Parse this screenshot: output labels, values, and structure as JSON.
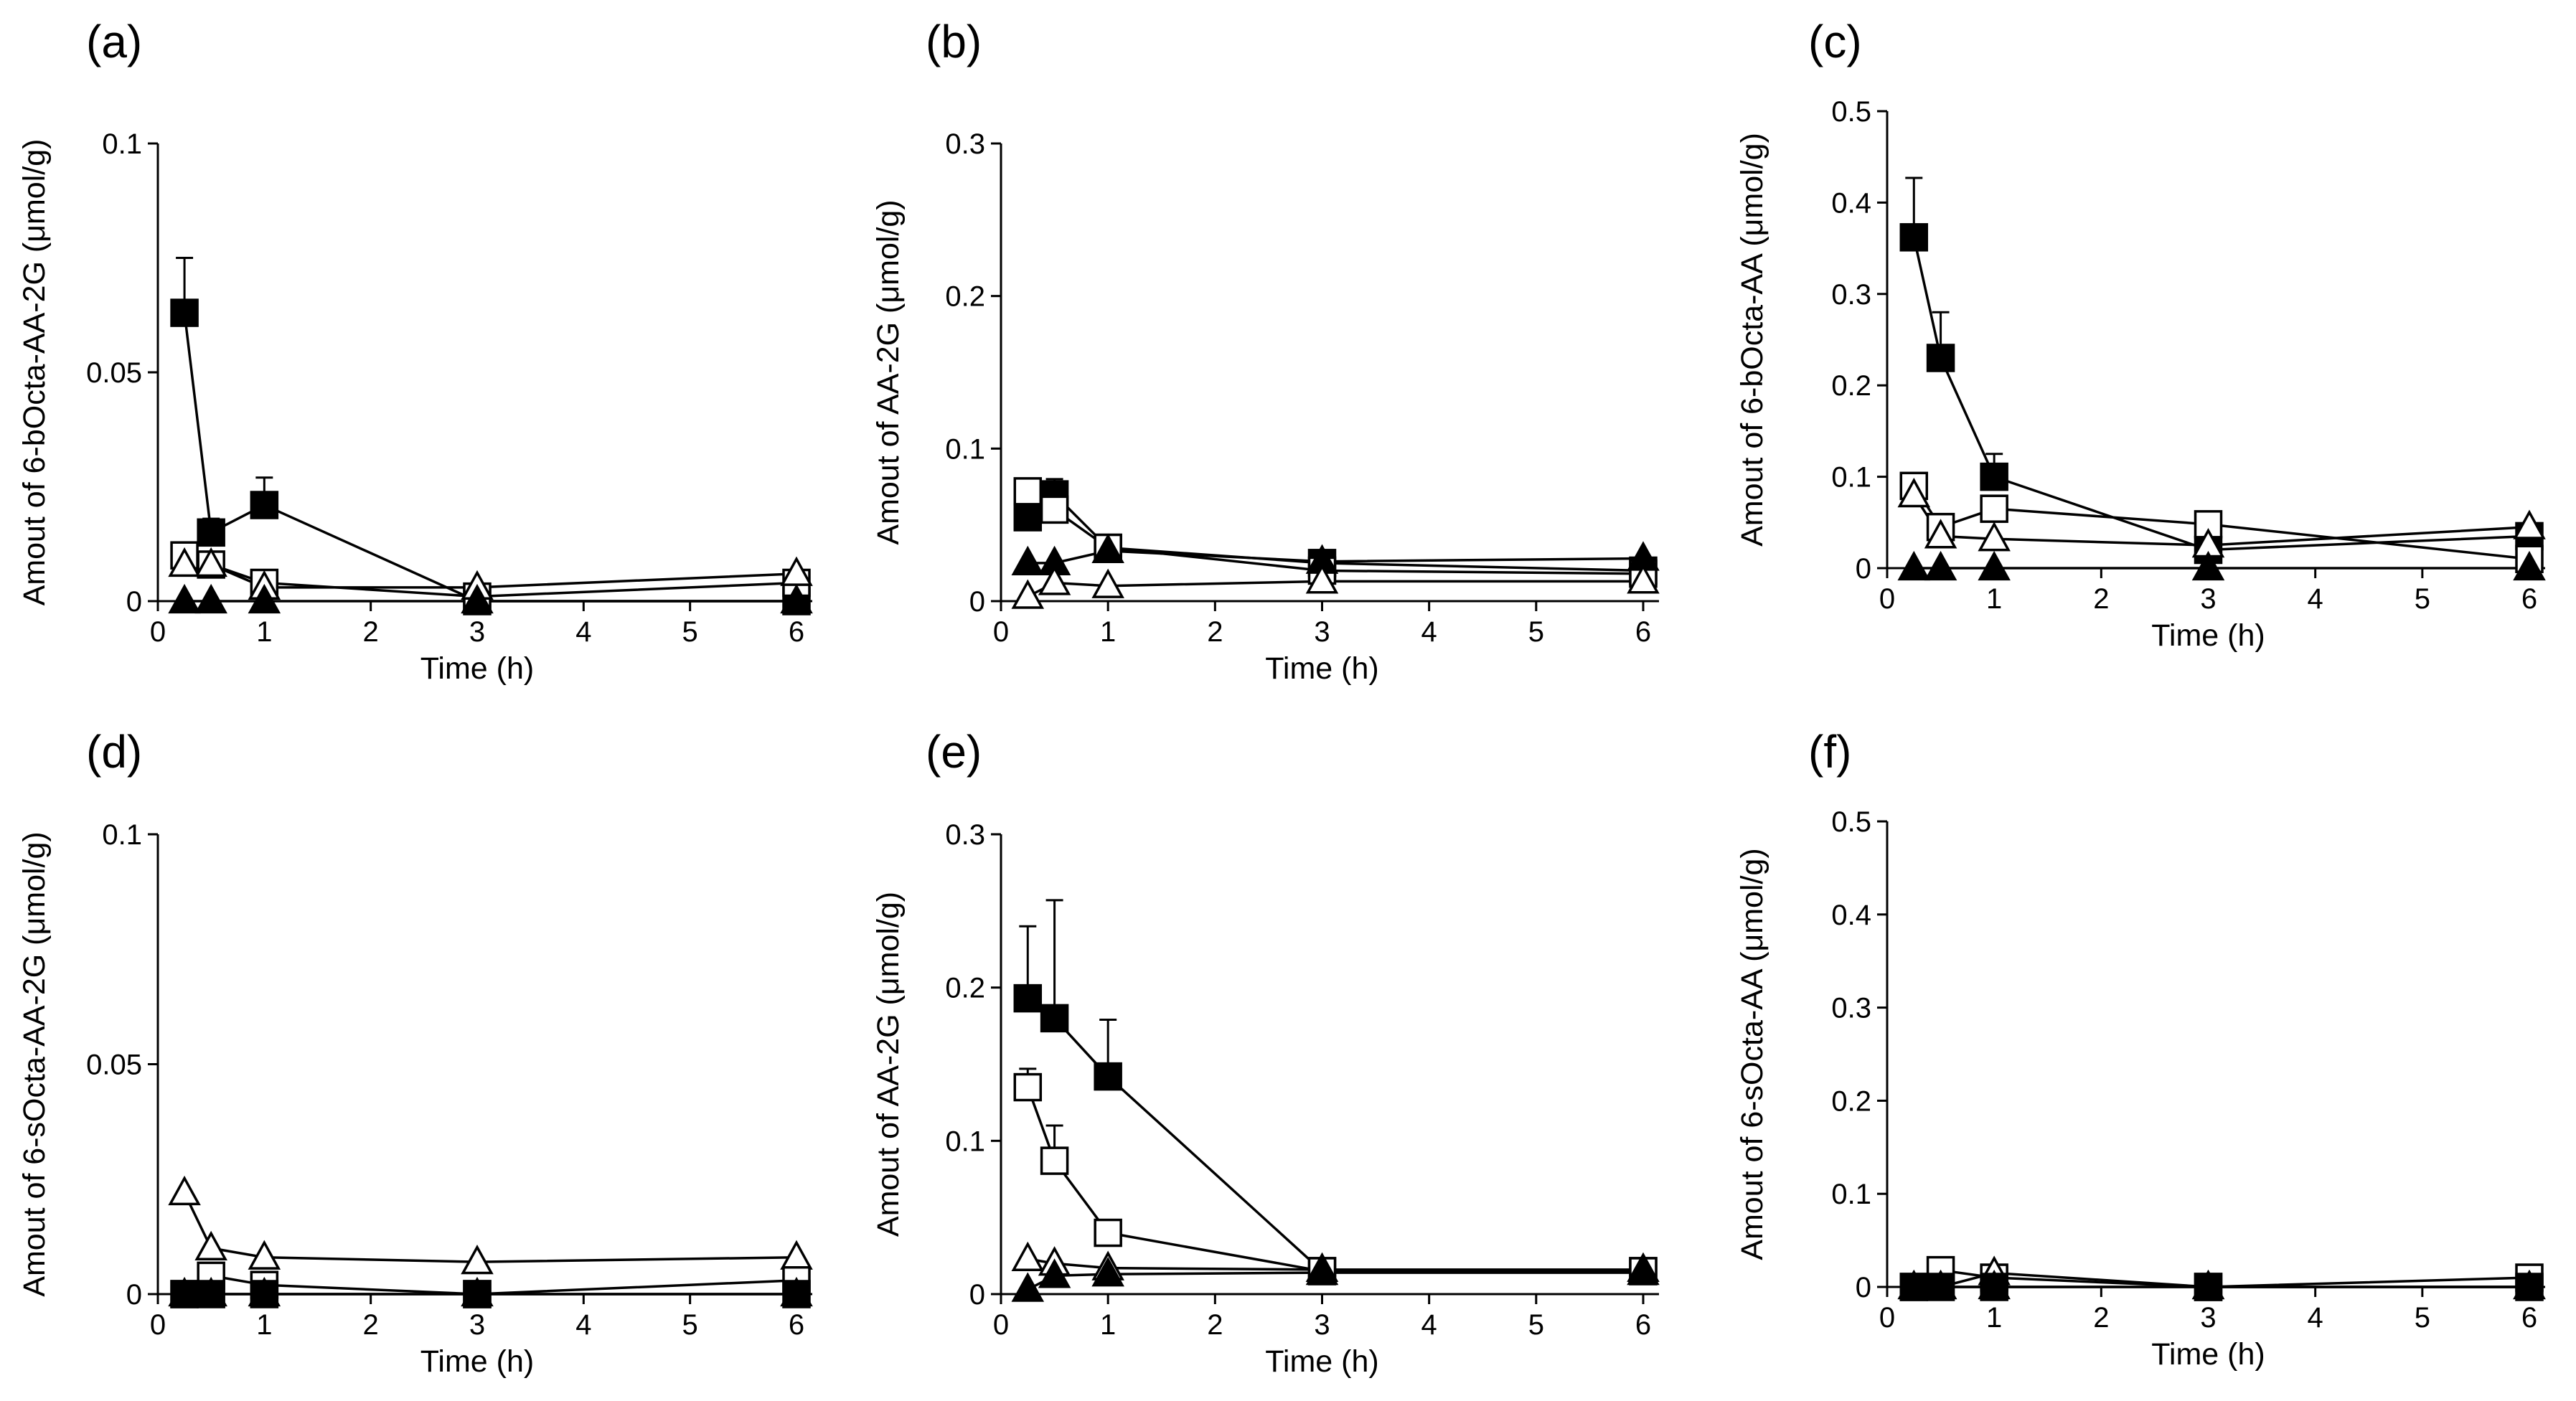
{
  "chart_data": [
    {
      "panel": "(a)",
      "type": "line",
      "ylabel": "Amout of 6-bOcta-AA-2G (μmol/g)",
      "xlabel": "Time (h)",
      "ylim": [
        0,
        0.1
      ],
      "xlim": [
        0,
        6
      ],
      "yticks": [
        {
          "v": 0,
          "t": "0"
        },
        {
          "v": 0.05,
          "t": "0.05"
        },
        {
          "v": 0.1,
          "t": "0.1"
        }
      ],
      "xticks": [
        0,
        1,
        2,
        3,
        4,
        5,
        6
      ],
      "series": [
        {
          "name": "filled-square",
          "x": [
            0.25,
            0.5,
            1,
            3,
            6
          ],
          "y": [
            0.063,
            0.015,
            0.021,
            0.0,
            0.0
          ],
          "err": [
            0.012,
            0.003,
            0.006,
            0,
            0
          ]
        },
        {
          "name": "open-square",
          "x": [
            0.25,
            0.5,
            1,
            3,
            6
          ],
          "y": [
            0.01,
            0.008,
            0.004,
            0.001,
            0.004
          ],
          "err": [
            0,
            0,
            0,
            0,
            0
          ]
        },
        {
          "name": "open-triangle",
          "x": [
            0.25,
            0.5,
            1,
            3,
            6
          ],
          "y": [
            0.008,
            0.008,
            0.003,
            0.003,
            0.006
          ],
          "err": [
            0,
            0,
            0,
            0,
            0
          ]
        },
        {
          "name": "filled-triangle",
          "x": [
            0.25,
            0.5,
            1,
            3,
            6
          ],
          "y": [
            0.0,
            0.0,
            0.0,
            0.0,
            0.0
          ],
          "err": [
            0,
            0,
            0,
            0,
            0
          ]
        }
      ]
    },
    {
      "panel": "(b)",
      "type": "line",
      "ylabel": "Amout of AA-2G (μmol/g)",
      "xlabel": "Time (h)",
      "ylim": [
        0,
        0.3
      ],
      "xlim": [
        0,
        6
      ],
      "yticks": [
        {
          "v": 0,
          "t": "0"
        },
        {
          "v": 0.1,
          "t": "0.1"
        },
        {
          "v": 0.2,
          "t": "0.2"
        },
        {
          "v": 0.3,
          "t": "0.3"
        }
      ],
      "xticks": [
        0,
        1,
        2,
        3,
        4,
        5,
        6
      ],
      "series": [
        {
          "name": "filled-square",
          "x": [
            0.25,
            0.5,
            1,
            3,
            6
          ],
          "y": [
            0.055,
            0.07,
            0.035,
            0.025,
            0.02
          ],
          "err": [
            0,
            0.01,
            0,
            0,
            0
          ]
        },
        {
          "name": "open-square",
          "x": [
            0.25,
            0.5,
            1,
            3,
            6
          ],
          "y": [
            0.072,
            0.06,
            0.035,
            0.02,
            0.018
          ],
          "err": [
            0,
            0,
            0,
            0,
            0
          ]
        },
        {
          "name": "filled-triangle",
          "x": [
            0.25,
            0.5,
            1,
            3,
            6
          ],
          "y": [
            0.025,
            0.025,
            0.033,
            0.026,
            0.028
          ],
          "err": [
            0,
            0,
            0,
            0,
            0
          ]
        },
        {
          "name": "open-triangle",
          "x": [
            0.25,
            0.5,
            1,
            3,
            6
          ],
          "y": [
            0.003,
            0.012,
            0.01,
            0.013,
            0.013
          ],
          "err": [
            0,
            0,
            0,
            0,
            0
          ]
        }
      ]
    },
    {
      "panel": "(c)",
      "type": "line",
      "ylabel": "Amout of 6-bOcta-AA (μmol/g)",
      "xlabel": "Time (h)",
      "ylim": [
        0,
        0.5
      ],
      "xlim": [
        0,
        6
      ],
      "yticks": [
        {
          "v": 0,
          "t": "0"
        },
        {
          "v": 0.1,
          "t": "0.1"
        },
        {
          "v": 0.2,
          "t": "0.2"
        },
        {
          "v": 0.3,
          "t": "0.3"
        },
        {
          "v": 0.4,
          "t": "0.4"
        },
        {
          "v": 0.5,
          "t": "0.5"
        }
      ],
      "xticks": [
        0,
        1,
        2,
        3,
        4,
        5,
        6
      ],
      "series": [
        {
          "name": "filled-square",
          "x": [
            0.25,
            0.5,
            1,
            3,
            6
          ],
          "y": [
            0.362,
            0.23,
            0.1,
            0.02,
            0.035
          ],
          "err": [
            0.065,
            0.05,
            0.025,
            0,
            0
          ]
        },
        {
          "name": "open-square",
          "x": [
            0.25,
            0.5,
            1,
            3,
            6
          ],
          "y": [
            0.09,
            0.045,
            0.065,
            0.048,
            0.01
          ],
          "err": [
            0,
            0,
            0,
            0,
            0
          ]
        },
        {
          "name": "open-triangle",
          "x": [
            0.25,
            0.5,
            1,
            3,
            6
          ],
          "y": [
            0.08,
            0.035,
            0.032,
            0.025,
            0.045
          ],
          "err": [
            0,
            0,
            0,
            0,
            0
          ]
        },
        {
          "name": "filled-triangle",
          "x": [
            0.25,
            0.5,
            1,
            3,
            6
          ],
          "y": [
            0.0,
            0.0,
            0.0,
            0.0,
            0.0
          ],
          "err": [
            0,
            0,
            0,
            0,
            0
          ]
        }
      ]
    },
    {
      "panel": "(d)",
      "type": "line",
      "ylabel": "Amout of 6-sOcta-AA-2G (μmol/g)",
      "xlabel": "Time (h)",
      "ylim": [
        0,
        0.1
      ],
      "xlim": [
        0,
        6
      ],
      "yticks": [
        {
          "v": 0,
          "t": "0"
        },
        {
          "v": 0.05,
          "t": "0.05"
        },
        {
          "v": 0.1,
          "t": "0.1"
        }
      ],
      "xticks": [
        0,
        1,
        2,
        3,
        4,
        5,
        6
      ],
      "series": [
        {
          "name": "open-triangle",
          "x": [
            0.25,
            0.5,
            1,
            3,
            6
          ],
          "y": [
            0.022,
            0.01,
            0.008,
            0.007,
            0.008
          ],
          "err": [
            0,
            0,
            0,
            0,
            0
          ]
        },
        {
          "name": "open-square",
          "x": [
            0.25,
            0.5,
            1,
            3,
            6
          ],
          "y": [
            0.0,
            0.004,
            0.002,
            0.0,
            0.003
          ],
          "err": [
            0,
            0,
            0,
            0,
            0
          ]
        },
        {
          "name": "filled-square",
          "x": [
            0.25,
            0.5,
            1,
            3,
            6
          ],
          "y": [
            0.0,
            0.0,
            0.0,
            0.0,
            0.0
          ],
          "err": [
            0,
            0,
            0,
            0,
            0
          ]
        },
        {
          "name": "filled-triangle",
          "x": [
            0.25,
            0.5,
            1,
            3,
            6
          ],
          "y": [
            0.0,
            0.0,
            0.0,
            0.0,
            0.0
          ],
          "err": [
            0,
            0,
            0,
            0,
            0
          ]
        }
      ]
    },
    {
      "panel": "(e)",
      "type": "line",
      "ylabel": "Amout of AA-2G (μmol/g)",
      "xlabel": "Time (h)",
      "ylim": [
        0,
        0.3
      ],
      "xlim": [
        0,
        6
      ],
      "yticks": [
        {
          "v": 0,
          "t": "0"
        },
        {
          "v": 0.1,
          "t": "0.1"
        },
        {
          "v": 0.2,
          "t": "0.2"
        },
        {
          "v": 0.3,
          "t": "0.3"
        }
      ],
      "xticks": [
        0,
        1,
        2,
        3,
        4,
        5,
        6
      ],
      "series": [
        {
          "name": "filled-square",
          "x": [
            0.25,
            0.5,
            1,
            3,
            6
          ],
          "y": [
            0.193,
            0.18,
            0.142,
            0.015,
            0.015
          ],
          "err": [
            0.047,
            0.077,
            0.037,
            0,
            0
          ]
        },
        {
          "name": "open-square",
          "x": [
            0.25,
            0.5,
            1,
            3,
            6
          ],
          "y": [
            0.135,
            0.087,
            0.04,
            0.015,
            0.015
          ],
          "err": [
            0.012,
            0.023,
            0,
            0,
            0
          ]
        },
        {
          "name": "open-triangle",
          "x": [
            0.25,
            0.5,
            1,
            3,
            6
          ],
          "y": [
            0.023,
            0.02,
            0.017,
            0.016,
            0.016
          ],
          "err": [
            0,
            0,
            0,
            0,
            0
          ]
        },
        {
          "name": "filled-triangle",
          "x": [
            0.25,
            0.5,
            1,
            3,
            6
          ],
          "y": [
            0.003,
            0.012,
            0.013,
            0.014,
            0.014
          ],
          "err": [
            0,
            0,
            0,
            0,
            0
          ]
        }
      ]
    },
    {
      "panel": "(f)",
      "type": "line",
      "ylabel": "Amout of 6-sOcta-AA (μmol/g)",
      "xlabel": "Time (h)",
      "ylim": [
        0,
        0.5
      ],
      "xlim": [
        0,
        6
      ],
      "yticks": [
        {
          "v": 0,
          "t": "0"
        },
        {
          "v": 0.1,
          "t": "0.1"
        },
        {
          "v": 0.2,
          "t": "0.2"
        },
        {
          "v": 0.3,
          "t": "0.3"
        },
        {
          "v": 0.4,
          "t": "0.4"
        },
        {
          "v": 0.5,
          "t": "0.5"
        }
      ],
      "xticks": [
        0,
        1,
        2,
        3,
        4,
        5,
        6
      ],
      "series": [
        {
          "name": "open-square",
          "x": [
            0.25,
            0.5,
            1,
            3,
            6
          ],
          "y": [
            0.0,
            0.018,
            0.01,
            0.0,
            0.01
          ],
          "err": [
            0,
            0,
            0,
            0,
            0
          ]
        },
        {
          "name": "open-triangle",
          "x": [
            0.25,
            0.5,
            1,
            3,
            6
          ],
          "y": [
            0.0,
            0.0,
            0.015,
            0.0,
            0.0
          ],
          "err": [
            0,
            0,
            0,
            0,
            0
          ]
        },
        {
          "name": "filled-square",
          "x": [
            0.25,
            0.5,
            1,
            3,
            6
          ],
          "y": [
            0.0,
            0.0,
            0.0,
            0.0,
            0.0
          ],
          "err": [
            0,
            0,
            0,
            0,
            0
          ]
        },
        {
          "name": "filled-triangle",
          "x": [
            0.25,
            0.5,
            1,
            3,
            6
          ],
          "y": [
            0.0,
            0.0,
            0.0,
            0.0,
            0.0
          ],
          "err": [
            0,
            0,
            0,
            0,
            0
          ]
        }
      ]
    }
  ]
}
